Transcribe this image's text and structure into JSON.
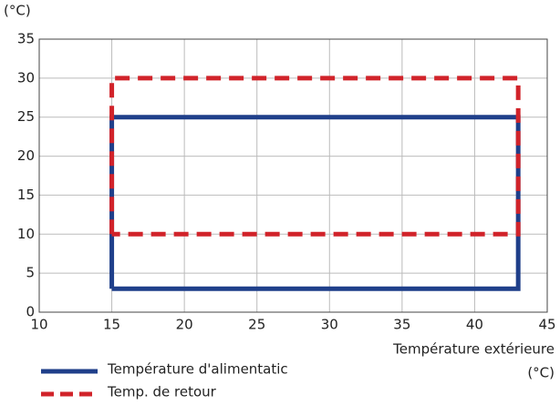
{
  "chart_data": {
    "type": "line",
    "y_unit_label": "(°C)",
    "xlabel": "Température extérieure",
    "x_unit_label": "(°C)",
    "xlim": [
      10,
      45
    ],
    "xticks": [
      10,
      15,
      20,
      25,
      30,
      35,
      40,
      45
    ],
    "ylim": [
      0,
      35
    ],
    "yticks": [
      0,
      5,
      10,
      15,
      20,
      25,
      30,
      35
    ],
    "grid": true,
    "series": [
      {
        "name": "Température d'alimentatic",
        "color": "#1f3f8a",
        "linestyle": "solid",
        "x": [
          15,
          15,
          43,
          43,
          15
        ],
        "values": [
          3,
          25,
          25,
          3,
          3
        ]
      },
      {
        "name": "Temp. de retour",
        "color": "#d1232a",
        "linestyle": "dashed",
        "x": [
          15,
          15,
          43,
          43,
          15
        ],
        "values": [
          10,
          30,
          30,
          10,
          10
        ]
      }
    ]
  }
}
